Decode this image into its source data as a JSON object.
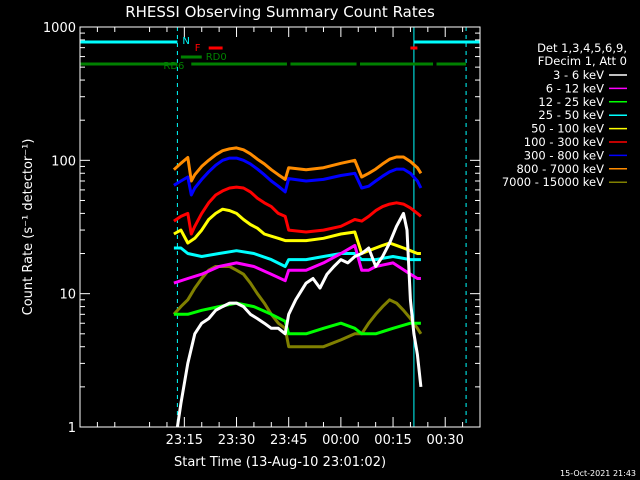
{
  "chart_data": {
    "type": "line",
    "title": "RHESSI Observing Summary Count Rates",
    "xlabel": "Start Time (13-Aug-10 23:01:02)",
    "ylabel": "Count Rate (s⁻¹ detector⁻¹)",
    "ylog": true,
    "ylim": [
      1,
      1000
    ],
    "xlim": [
      -15,
      100
    ],
    "x_unit": "minutes after 23:00 on 13-Aug-10",
    "x_tick_labels": [
      "23:15",
      "23:30",
      "23:45",
      "00:00",
      "00:15",
      "00:30"
    ],
    "x_tick_values": [
      15,
      30,
      45,
      60,
      75,
      90
    ],
    "y_tick_labels": [
      "1",
      "10",
      "100",
      "1000"
    ],
    "y_tick_values": [
      1,
      10,
      100,
      1000
    ],
    "timestamp": "15-Oct-2021 21:43",
    "legend_header": [
      "Det 1,3,4,5,6,9,",
      "FDecim 1, Att 0"
    ],
    "legend_position": "right",
    "series": [
      {
        "name": "3 - 6 keV",
        "color": "#ffffff",
        "x": [
          13,
          14,
          16,
          18,
          20,
          22,
          24,
          26,
          28,
          30,
          32,
          34,
          36,
          38,
          40,
          42,
          44,
          45,
          47,
          50,
          52,
          54,
          56,
          58,
          60,
          62,
          64,
          66,
          68,
          70,
          72,
          74,
          76,
          78,
          79,
          80,
          81,
          82,
          83
        ],
        "y": [
          1,
          1.5,
          3,
          5,
          6,
          6.5,
          7.5,
          8,
          8.5,
          8.5,
          8,
          7,
          6.5,
          6,
          5.5,
          5.5,
          5,
          7,
          9,
          12,
          13,
          11,
          14,
          16,
          18,
          17,
          19,
          20,
          22,
          16,
          19,
          24,
          32,
          40,
          30,
          9,
          5,
          3.5,
          2
        ]
      },
      {
        "name": "6 - 12 keV",
        "color": "#ff00ff",
        "x": [
          12,
          16,
          20,
          25,
          30,
          35,
          40,
          44,
          45,
          50,
          55,
          60,
          64,
          66,
          68,
          70,
          75,
          80,
          82,
          83
        ],
        "y": [
          12,
          13,
          14,
          16,
          17,
          16,
          14,
          12.5,
          15,
          15,
          17,
          20,
          23,
          15,
          15,
          16,
          17,
          14,
          13,
          13
        ]
      },
      {
        "name": "12 - 25 keV",
        "color": "#00ff00",
        "x": [
          12,
          16,
          20,
          25,
          30,
          35,
          40,
          44,
          45,
          50,
          55,
          60,
          64,
          66,
          70,
          75,
          80,
          83
        ],
        "y": [
          7,
          7,
          7.5,
          8,
          8.5,
          8,
          7,
          6.2,
          5,
          5,
          5.5,
          6,
          5.5,
          5,
          5,
          5.5,
          6,
          6
        ]
      },
      {
        "name": "25 - 50 keV",
        "color": "#00ffff",
        "x": [
          12,
          14,
          16,
          20,
          25,
          30,
          35,
          40,
          44,
          45,
          50,
          55,
          60,
          64,
          66,
          70,
          75,
          80,
          83
        ],
        "y": [
          22,
          22,
          20,
          19,
          20,
          21,
          20,
          18,
          16,
          18,
          18,
          19,
          20,
          20,
          18,
          18,
          19,
          18,
          18
        ]
      },
      {
        "name": "50 - 100 keV",
        "color": "#ffff00",
        "x": [
          12,
          14,
          16,
          18,
          20,
          22,
          24,
          26,
          28,
          30,
          32,
          34,
          36,
          38,
          40,
          42,
          44,
          45,
          50,
          55,
          60,
          64,
          66,
          68,
          70,
          72,
          74,
          76,
          78,
          80,
          82,
          83
        ],
        "y": [
          28,
          30,
          24,
          26,
          30,
          36,
          40,
          43,
          42,
          40,
          36,
          33,
          31,
          28,
          27,
          26,
          25,
          25,
          25,
          26,
          28,
          29,
          20,
          21,
          22,
          23,
          24,
          23,
          22,
          21,
          20,
          20
        ]
      },
      {
        "name": "100 - 300 keV",
        "color": "#ff0000",
        "x": [
          12,
          14,
          16,
          17,
          18,
          20,
          22,
          24,
          26,
          28,
          30,
          32,
          34,
          36,
          38,
          40,
          42,
          44,
          45,
          50,
          55,
          60,
          64,
          66,
          68,
          70,
          72,
          74,
          76,
          78,
          80,
          82,
          83
        ],
        "y": [
          35,
          38,
          40,
          28,
          32,
          40,
          48,
          55,
          59,
          62,
          63,
          62,
          58,
          52,
          48,
          45,
          40,
          38,
          30,
          29,
          30,
          32,
          36,
          35,
          38,
          42,
          45,
          47,
          48,
          47,
          44,
          40,
          38
        ]
      },
      {
        "name": "300 - 800 keV",
        "color": "#0000ff",
        "x": [
          12,
          14,
          16,
          17,
          18,
          20,
          22,
          24,
          26,
          28,
          30,
          32,
          34,
          36,
          38,
          40,
          42,
          44,
          45,
          50,
          55,
          60,
          64,
          66,
          68,
          70,
          72,
          74,
          76,
          78,
          80,
          82,
          83
        ],
        "y": [
          65,
          70,
          75,
          55,
          62,
          72,
          82,
          92,
          100,
          104,
          104,
          100,
          94,
          86,
          78,
          70,
          64,
          58,
          73,
          70,
          72,
          77,
          80,
          62,
          64,
          70,
          76,
          82,
          86,
          86,
          80,
          70,
          62
        ]
      },
      {
        "name": "800 - 7000 keV",
        "color": "#ff8c00",
        "x": [
          12,
          14,
          16,
          17,
          18,
          20,
          22,
          24,
          26,
          28,
          30,
          32,
          34,
          36,
          38,
          40,
          42,
          44,
          45,
          50,
          55,
          60,
          64,
          66,
          68,
          70,
          72,
          74,
          76,
          78,
          80,
          82,
          83
        ],
        "y": [
          85,
          95,
          105,
          70,
          78,
          90,
          100,
          110,
          118,
          122,
          124,
          120,
          112,
          102,
          94,
          85,
          78,
          72,
          88,
          85,
          88,
          95,
          100,
          75,
          80,
          86,
          94,
          102,
          106,
          106,
          98,
          88,
          80
        ]
      },
      {
        "name": "7000 - 15000 keV",
        "color": "#808000",
        "x": [
          12,
          14,
          16,
          18,
          20,
          22,
          24,
          26,
          28,
          30,
          32,
          34,
          36,
          38,
          40,
          42,
          44,
          45,
          50,
          55,
          60,
          64,
          66,
          68,
          70,
          72,
          74,
          76,
          78,
          80,
          82,
          83
        ],
        "y": [
          7,
          8,
          9,
          11,
          13,
          15,
          16,
          16,
          16,
          15,
          14,
          12,
          10,
          8.5,
          7,
          6,
          5.5,
          4,
          4,
          4,
          4.5,
          5,
          5,
          6,
          7,
          8,
          9,
          8.5,
          7.5,
          6.5,
          5.5,
          5
        ]
      }
    ],
    "state_bars": [
      {
        "label": "N",
        "color": "#00ffff",
        "segments": [
          [
            -15,
            13
          ],
          [
            81,
            100
          ]
        ]
      },
      {
        "label": "F",
        "color": "#ff0000",
        "segments": [
          [
            22,
            26
          ],
          [
            80,
            82
          ]
        ]
      },
      {
        "label": "RD0",
        "color": "#008000",
        "segments": [
          [
            14,
            20
          ]
        ]
      },
      {
        "label": "RD6",
        "color": "#008000",
        "segments": [
          [
            -15,
            13
          ],
          [
            17,
            44.5
          ],
          [
            45.5,
            64.5
          ],
          [
            65.5,
            86.5
          ],
          [
            87.5,
            96
          ]
        ]
      }
    ],
    "vertical_markers": [
      {
        "color": "#00ffff",
        "style": "solid",
        "x": [
          -15,
          81
        ]
      },
      {
        "color": "#00ffff",
        "style": "dashed",
        "x": [
          13,
          96
        ]
      }
    ]
  }
}
